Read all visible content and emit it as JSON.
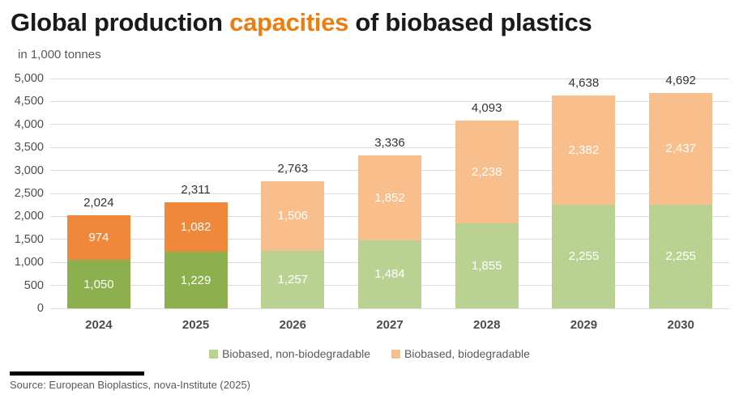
{
  "title": {
    "part1": "Global production ",
    "highlight": "capacities",
    "part2": " of biobased plastics"
  },
  "subtitle": "in 1,000 tonnes",
  "source": "Source: European Bioplastics, nova-Institute (2025)",
  "colors": {
    "green": "#8cb04d",
    "orange": "#f0883c",
    "green_light": "#b9d292",
    "orange_light": "#f8bf8c",
    "title_highlight": "#ee7d11",
    "gridline": "#dcdcdc",
    "divider": "#000000"
  },
  "legend": [
    {
      "label": "Biobased, non-biodegradable",
      "color": "#b9d292"
    },
    {
      "label": "Biobased, biodegradable",
      "color": "#f8bf8c"
    }
  ],
  "chart_data": {
    "type": "bar",
    "stacked": true,
    "title": "Global production capacities of biobased plastics",
    "units": "in 1,000 tonnes",
    "categories": [
      "2024",
      "2025",
      "2026",
      "2027",
      "2028",
      "2029",
      "2030"
    ],
    "series": [
      {
        "name": "Biobased, non-biodegradable",
        "values": [
          1050,
          1229,
          1257,
          1484,
          1855,
          2255,
          2255
        ]
      },
      {
        "name": "Biobased, biodegradable",
        "values": [
          974,
          1082,
          1506,
          1852,
          2238,
          2382,
          2437
        ]
      }
    ],
    "totals": [
      2024,
      2311,
      2763,
      3336,
      4093,
      4638,
      4692
    ],
    "forecast": [
      false,
      false,
      true,
      true,
      true,
      true,
      true
    ],
    "ylim": [
      0,
      5000
    ],
    "ytick_step": 500,
    "grid": true,
    "legend_position": "bottom"
  }
}
